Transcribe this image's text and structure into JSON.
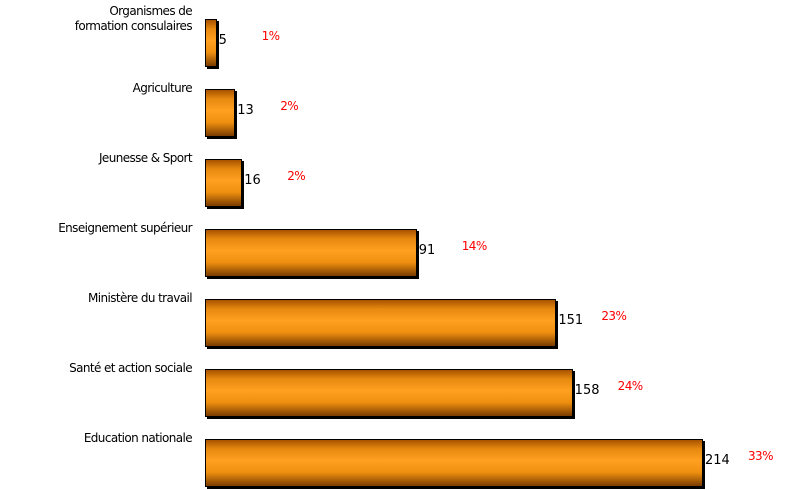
{
  "chart_data": {
    "type": "bar",
    "orientation": "horizontal",
    "categories": [
      "Organismes de\nformation consulaires",
      "Agriculture",
      "Jeunesse & Sport",
      "Enseignement supérieur",
      "Ministère du travail",
      "Santé et action sociale",
      "Education nationale"
    ],
    "values": [
      5,
      13,
      16,
      91,
      151,
      158,
      214
    ],
    "shares": [
      1,
      2,
      2,
      14,
      23,
      24,
      33
    ],
    "share_labels": [
      "1%",
      "2%",
      "2%",
      "14%",
      "23%",
      "24%",
      "33%"
    ],
    "color": "#ff9900",
    "share_color": "#ff0000"
  }
}
